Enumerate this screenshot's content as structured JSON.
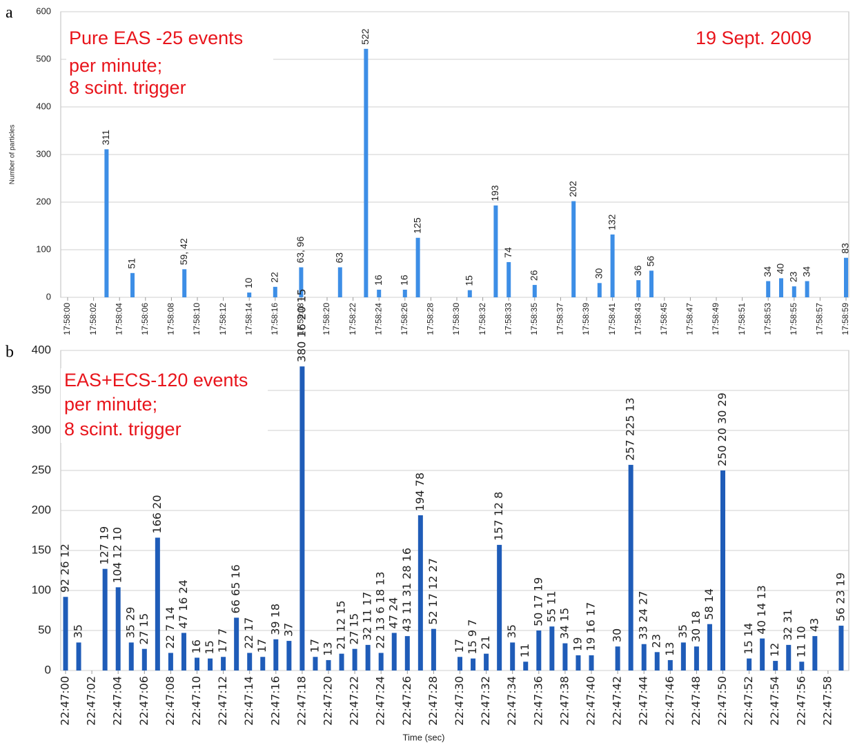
{
  "chart_data": [
    {
      "type": "bar",
      "panel_label": "a",
      "annotation_lines": [
        "Pure EAS -25 events",
        "per minute;",
        "8 scint. trigger"
      ],
      "date": "19 Sept. 2009",
      "y_label": "Number of particles",
      "color": "#3d8ee6",
      "grid": true,
      "ylim": [
        0,
        600
      ],
      "yticks": [
        0,
        100,
        200,
        300,
        400,
        500,
        600
      ],
      "categories": [
        "17:58:00",
        null,
        "17:58:02",
        null,
        "17:58:04",
        null,
        "17:58:06",
        null,
        "17:58:08",
        null,
        "17:58:10",
        null,
        "17:58:12",
        null,
        "17:58:14",
        null,
        "17:58:16",
        null,
        "17:58:18",
        null,
        "17:58:20",
        null,
        "17:58:22",
        null,
        "17:58:24",
        null,
        "17:58:26",
        null,
        "17:58:28",
        null,
        "17:58:30",
        null,
        "17:58:32",
        null,
        "17:58:33",
        null,
        "17:58:35",
        null,
        "17:58:37",
        null,
        "17:58:39",
        null,
        "17:58:41",
        null,
        "17:58:43",
        null,
        "17:58:45",
        null,
        "17:58:47",
        null,
        "17:58:49",
        null,
        "17:58:51",
        null,
        "17:58:53",
        null,
        "17:58:55",
        null,
        "17:58:57",
        null,
        "17:58:59"
      ],
      "values": [
        null,
        null,
        null,
        311,
        null,
        51,
        null,
        null,
        null,
        59,
        null,
        null,
        null,
        null,
        10,
        null,
        22,
        null,
        63,
        null,
        null,
        63,
        null,
        522,
        16,
        null,
        16,
        125,
        null,
        null,
        null,
        15,
        null,
        193,
        74,
        null,
        26,
        null,
        null,
        202,
        null,
        30,
        132,
        null,
        36,
        56,
        null,
        null,
        null,
        null,
        null,
        null,
        null,
        null,
        34,
        40,
        23,
        34,
        null,
        null,
        83
      ],
      "value_labels": [
        null,
        null,
        null,
        null,
        null,
        null,
        null,
        null,
        null,
        "59, 42",
        null,
        null,
        null,
        null,
        null,
        null,
        null,
        null,
        "63, 96",
        null,
        null,
        null,
        null,
        null,
        null,
        null,
        null,
        null,
        null,
        null,
        null,
        null,
        null,
        null,
        null,
        null,
        null,
        null,
        null,
        null,
        null,
        null,
        null,
        null,
        null,
        null,
        null,
        null,
        null,
        null,
        null,
        null,
        null,
        null,
        null,
        null,
        null,
        null,
        null,
        null,
        null
      ]
    },
    {
      "type": "bar",
      "panel_label": "b",
      "annotation_lines": [
        "EAS+ECS-120 events",
        "per minute;",
        "8 scint. trigger"
      ],
      "x_label": "Time (sec)",
      "color": "#1f5cb8",
      "grid": true,
      "ylim": [
        0,
        400
      ],
      "yticks": [
        0,
        50,
        100,
        150,
        200,
        250,
        300,
        350,
        400
      ],
      "categories": [
        "22:47:00",
        null,
        "22:47:02",
        null,
        "22:47:04",
        null,
        "22:47:06",
        null,
        "22:47:08",
        null,
        "22:47:10",
        null,
        "22:47:12",
        null,
        "22:47:14",
        null,
        "22:47:16",
        null,
        "22:47:18",
        null,
        "22:47:20",
        null,
        "22:47:22",
        null,
        "22:47:24",
        null,
        "22:47:26",
        null,
        "22:47:28",
        null,
        "22:47:30",
        null,
        "22:47:32",
        null,
        "22:47:34",
        null,
        "22:47:36",
        null,
        "22:47:38",
        null,
        "22:47:40",
        null,
        "22:47:42",
        null,
        "22:47:44",
        null,
        "22:47:46",
        null,
        "22:47:48",
        null,
        "22:47:50",
        null,
        "22:47:52",
        null,
        "22:47:54",
        null,
        "22:47:56",
        null,
        "22:47:58",
        null
      ],
      "values": [
        92,
        35,
        null,
        127,
        104,
        35,
        27,
        166,
        22,
        47,
        16,
        15,
        17,
        66,
        22,
        17,
        39,
        37,
        380,
        17,
        13,
        21,
        27,
        32,
        22,
        47,
        43,
        194,
        52,
        null,
        17,
        15,
        21,
        157,
        35,
        11,
        50,
        55,
        34,
        19,
        19,
        null,
        30,
        257,
        33,
        23,
        13,
        35,
        30,
        58,
        250,
        null,
        15,
        40,
        12,
        32,
        11,
        43,
        null,
        56
      ],
      "value_labels": [
        "92 26 12",
        null,
        null,
        "127 19",
        "104 12 10",
        "35 29",
        "27 15",
        "166 20",
        "22 7 14",
        "47 16 24",
        null,
        null,
        "17 7",
        "66 65 16",
        "22 17",
        null,
        "39 18",
        null,
        "380 16 20 15",
        null,
        null,
        "21 12 15",
        "27 15",
        "32 11 17",
        "22 13 6 18 13",
        "47 24",
        "43 11 31 28 16",
        "194 78",
        "52 17 12 27",
        null,
        null,
        "15 9 7",
        null,
        "157 12 8",
        null,
        null,
        "50 17 19",
        "55 11",
        "34 15",
        null,
        "19 16 17",
        null,
        null,
        "257 225 13",
        "33 24 27",
        null,
        null,
        null,
        "30 18",
        "58 14",
        "250 20 30 29",
        null,
        "15 14",
        "40 14 13",
        null,
        "32 31",
        "11 10",
        null,
        null,
        "56 23 19"
      ]
    }
  ]
}
